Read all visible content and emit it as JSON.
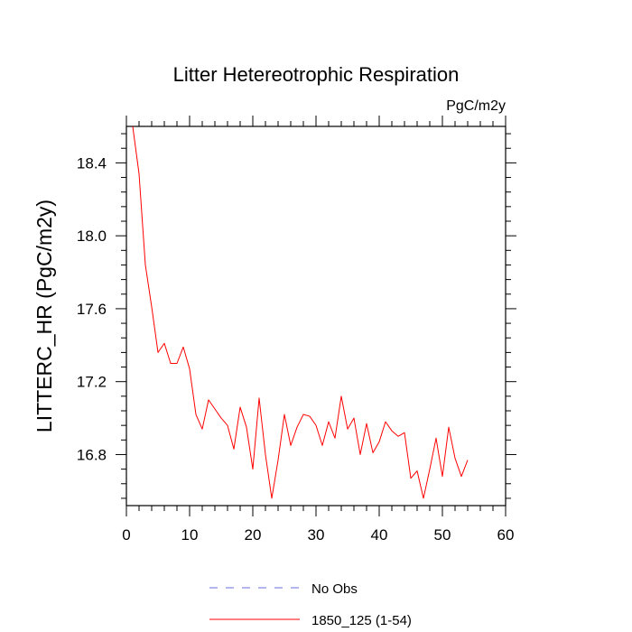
{
  "chart_data": {
    "type": "line",
    "title": "Litter Hetereotrophic Respiration",
    "units_label": "PgC/m2y",
    "ylabel": "LITTERC_HR  (PgC/m2y)",
    "xlabel": "",
    "xlim": [
      0,
      60
    ],
    "ylim": [
      16.52,
      18.6
    ],
    "x_ticks": [
      0,
      10,
      20,
      30,
      40,
      50,
      60
    ],
    "x_tick_labels": [
      "0",
      "10",
      "20",
      "30",
      "40",
      "50",
      "60"
    ],
    "y_ticks": [
      16.8,
      17.2,
      17.6,
      18.0,
      18.4
    ],
    "y_tick_labels": [
      "16.8",
      "17.2",
      "17.6",
      "18.0",
      "18.4"
    ],
    "grid": false,
    "legend_position": "bottom",
    "series": [
      {
        "name": "No Obs",
        "color": "#6a6adf",
        "style": "dashed",
        "x": [],
        "values": []
      },
      {
        "name": "1850_125 (1-54)",
        "color": "#ff0000",
        "style": "solid",
        "x": [
          1,
          2,
          3,
          4,
          5,
          6,
          7,
          8,
          9,
          10,
          11,
          12,
          13,
          14,
          15,
          16,
          17,
          18,
          19,
          20,
          21,
          22,
          23,
          24,
          25,
          26,
          27,
          28,
          29,
          30,
          31,
          32,
          33,
          34,
          35,
          36,
          37,
          38,
          39,
          40,
          41,
          42,
          43,
          44,
          45,
          46,
          47,
          48,
          49,
          50,
          51,
          52,
          53,
          54
        ],
        "values": [
          18.6,
          18.34,
          17.84,
          17.61,
          17.36,
          17.41,
          17.3,
          17.3,
          17.39,
          17.27,
          17.02,
          16.94,
          17.1,
          17.05,
          17.0,
          16.96,
          16.83,
          17.06,
          16.95,
          16.72,
          17.11,
          16.8,
          16.56,
          16.77,
          17.02,
          16.85,
          16.95,
          17.02,
          17.01,
          16.96,
          16.85,
          16.98,
          16.89,
          17.12,
          16.94,
          17.0,
          16.8,
          16.97,
          16.81,
          16.87,
          16.98,
          16.93,
          16.9,
          16.92,
          16.67,
          16.71,
          16.56,
          16.72,
          16.89,
          16.68,
          16.95,
          16.78,
          16.68,
          16.77
        ]
      }
    ]
  }
}
